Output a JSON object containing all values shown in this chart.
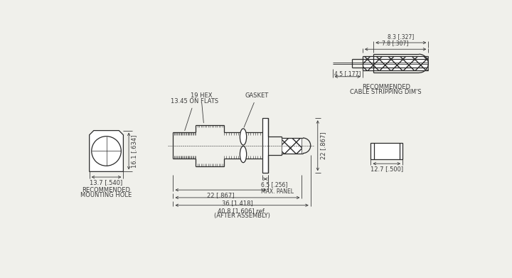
{
  "bg_color": "#f0f0eb",
  "line_color": "#2a2a2a",
  "dim_color": "#3a3a3a",
  "annotations": {
    "hex_label": "19 HEX",
    "flats_label": "13.45 ON FLATS",
    "gasket_label": "GASKET",
    "mounting_label": "RECOMMENDED\nMOUNTING HOLE",
    "cable_label": "RECOMMENDED\nCABLE STRIPPING DIM'S",
    "panel_label": "6.5 [.256]\nMAX. PANEL",
    "dim_22_867_h": "22 [.867]",
    "dim_36_1418": "36 [1.418]",
    "dim_408_1606": "40.8 [1.606] ref.",
    "dim_after": "(AFTER ASSEMBLY)",
    "dim_22_vert": "22 [.867]",
    "dim_127_500": "12.7 [.500]",
    "dim_161_634": "16.1 [.634]",
    "dim_137_540": "13.7 [.540]",
    "dim_78_307": "7.8 [.307]",
    "dim_45_177": "4.5 [.177]",
    "dim_83_327": "8.3 [.327]"
  }
}
